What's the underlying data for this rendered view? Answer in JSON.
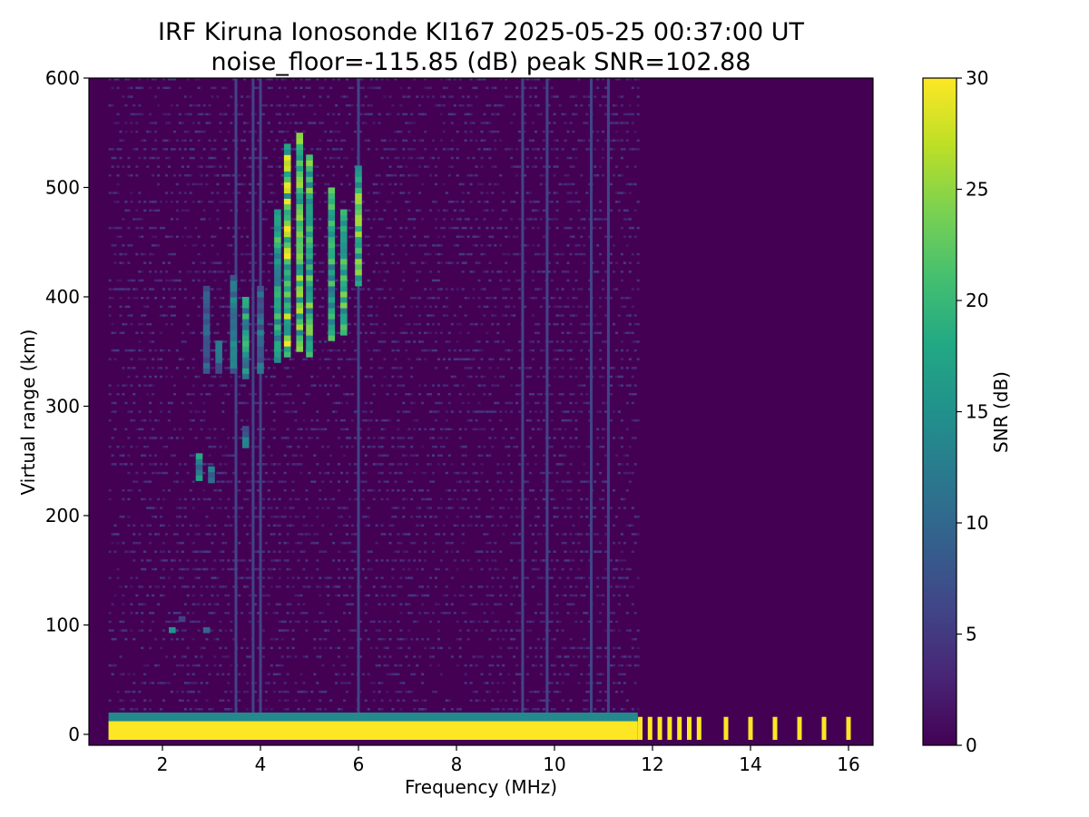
{
  "chart_data": {
    "type": "heatmap",
    "title": "IRF Kiruna Ionosonde KI167 2025-05-25 00:37:00  UT",
    "subtitle": "noise_floor=-115.85 (dB) peak SNR=102.88",
    "xlabel": "Frequency (MHz)",
    "ylabel": "Virtual range (km)",
    "colorbar_label": "SNR (dB)",
    "xlim": [
      0.5,
      16.5
    ],
    "ylim": [
      -10,
      600
    ],
    "clim": [
      0,
      30
    ],
    "colormap": "viridis",
    "xticks": [
      2,
      4,
      6,
      8,
      10,
      12,
      14,
      16
    ],
    "xtick_labels": [
      "2",
      "4",
      "6",
      "8",
      "10",
      "12",
      "14",
      "16"
    ],
    "yticks": [
      0,
      100,
      200,
      300,
      400,
      500,
      600
    ],
    "ytick_labels": [
      "0",
      "100",
      "200",
      "300",
      "400",
      "500",
      "600"
    ],
    "cticks": [
      0,
      5,
      10,
      15,
      20,
      25,
      30
    ],
    "ctick_labels": [
      "0",
      "5",
      "10",
      "15",
      "20",
      "25",
      "30"
    ],
    "grid": false,
    "background_snr_db": 1.5,
    "data_freq_range_mhz": [
      0.9,
      16.2
    ],
    "ground_echo": {
      "range_km": [
        -5,
        12
      ],
      "snr_db": 30,
      "continuous_until_mhz": 11.7,
      "discrete_freqs_mhz": [
        11.75,
        11.95,
        12.15,
        12.35,
        12.55,
        12.75,
        12.95,
        13.5,
        14.0,
        14.5,
        15.0,
        15.5,
        16.0
      ]
    },
    "echo_traces": [
      {
        "freq_mhz": 2.9,
        "range_km": [
          330,
          410
        ],
        "snr_db": 10
      },
      {
        "freq_mhz": 3.15,
        "range_km": [
          330,
          360
        ],
        "snr_db": 12
      },
      {
        "freq_mhz": 3.45,
        "range_km": [
          330,
          420
        ],
        "snr_db": 14
      },
      {
        "freq_mhz": 3.7,
        "range_km": [
          325,
          400
        ],
        "snr_db": 18
      },
      {
        "freq_mhz": 4.0,
        "range_km": [
          330,
          410
        ],
        "snr_db": 12
      },
      {
        "freq_mhz": 4.35,
        "range_km": [
          340,
          480
        ],
        "snr_db": 20
      },
      {
        "freq_mhz": 4.55,
        "range_km": [
          345,
          540
        ],
        "snr_db": 26
      },
      {
        "freq_mhz": 4.8,
        "range_km": [
          350,
          550
        ],
        "snr_db": 24
      },
      {
        "freq_mhz": 5.0,
        "range_km": [
          345,
          530
        ],
        "snr_db": 22
      },
      {
        "freq_mhz": 5.45,
        "range_km": [
          360,
          500
        ],
        "snr_db": 20
      },
      {
        "freq_mhz": 5.7,
        "range_km": [
          365,
          480
        ],
        "snr_db": 22
      },
      {
        "freq_mhz": 6.0,
        "range_km": [
          410,
          520
        ],
        "snr_db": 24
      },
      {
        "freq_mhz": 2.75,
        "range_km": [
          232,
          255
        ],
        "snr_db": 16
      },
      {
        "freq_mhz": 3.0,
        "range_km": [
          230,
          245
        ],
        "snr_db": 12
      },
      {
        "freq_mhz": 2.2,
        "range_km": [
          93,
          97
        ],
        "snr_db": 14
      },
      {
        "freq_mhz": 2.9,
        "range_km": [
          93,
          97
        ],
        "snr_db": 16
      },
      {
        "freq_mhz": 2.4,
        "range_km": [
          103,
          108
        ],
        "snr_db": 10
      },
      {
        "freq_mhz": 3.7,
        "range_km": [
          262,
          280
        ],
        "snr_db": 12
      }
    ],
    "interference_lines_mhz": [
      3.5,
      3.85,
      4.0,
      6.0,
      9.35,
      9.85,
      10.75,
      11.1
    ]
  }
}
